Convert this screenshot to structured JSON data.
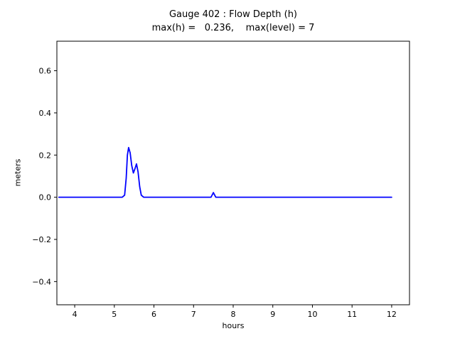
{
  "chart": {
    "title": "Gauge 402 : Flow Depth (h)",
    "subtitle": "max(h) =   0.236,    max(level) = 7",
    "xlabel": "hours",
    "ylabel": "meters"
  },
  "chart_data": {
    "type": "line",
    "title": "Gauge 402 : Flow Depth (h)",
    "subtitle": "max(h) = 0.236, max(level) = 7",
    "max_h": 0.236,
    "max_level": 7,
    "xlabel": "hours",
    "ylabel": "meters",
    "xlim": [
      3.55,
      12.45
    ],
    "ylim": [
      -0.51,
      0.74
    ],
    "xticks": [
      4,
      5,
      6,
      7,
      8,
      9,
      10,
      11,
      12
    ],
    "yticks": [
      -0.4,
      -0.2,
      0.0,
      0.2,
      0.4,
      0.6
    ],
    "grid": false,
    "legend": "none",
    "line_color": "#0000ff",
    "axis_color": "#000000",
    "series": [
      {
        "name": "flow-depth-h",
        "x": [
          3.6,
          5.2,
          5.26,
          5.3,
          5.33,
          5.36,
          5.4,
          5.44,
          5.48,
          5.52,
          5.56,
          5.6,
          5.64,
          5.68,
          5.74,
          6.5,
          7.44,
          7.5,
          7.56,
          8.5,
          10.0,
          12.0
        ],
        "y": [
          0.0,
          0.0,
          0.01,
          0.09,
          0.2,
          0.236,
          0.21,
          0.15,
          0.115,
          0.135,
          0.158,
          0.12,
          0.05,
          0.01,
          0.0,
          0.0,
          0.0,
          0.022,
          0.0,
          0.0,
          0.0,
          0.0
        ]
      }
    ]
  }
}
